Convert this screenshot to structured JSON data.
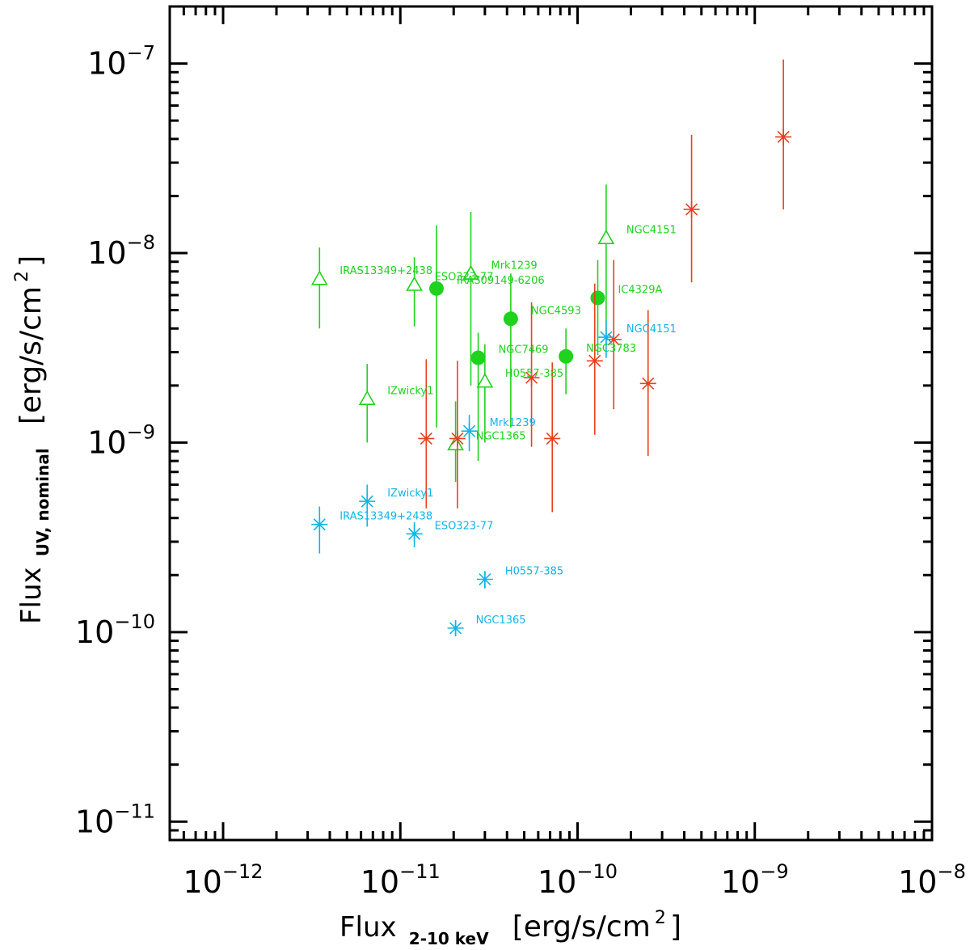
{
  "chart_data": {
    "type": "scatter",
    "xscale": "log",
    "yscale": "log",
    "xlim": [
      5e-13,
      1e-08
    ],
    "ylim": [
      8e-12,
      2e-07
    ],
    "xlabel": {
      "main": "Flux",
      "sub": "2-10 keV",
      "units": "[erg/s/cm",
      "sup": "2",
      "close": "]"
    },
    "ylabel": {
      "main": "Flux",
      "sub": "UV, nominal",
      "units": "[erg/s/cm",
      "sup": "2",
      "close": "]"
    },
    "xticks": [
      {
        "value": 1e-12,
        "base": "10",
        "exp": "−12"
      },
      {
        "value": 1e-11,
        "base": "10",
        "exp": "−11"
      },
      {
        "value": 1e-10,
        "base": "10",
        "exp": "−10"
      },
      {
        "value": 1e-09,
        "base": "10",
        "exp": "−9"
      },
      {
        "value": 1e-08,
        "base": "10",
        "exp": "−8"
      }
    ],
    "yticks": [
      {
        "value": 1e-11,
        "base": "10",
        "exp": "−11"
      },
      {
        "value": 1e-10,
        "base": "10",
        "exp": "−10"
      },
      {
        "value": 1e-09,
        "base": "10",
        "exp": "−9"
      },
      {
        "value": 1e-08,
        "base": "10",
        "exp": "−8"
      },
      {
        "value": 1e-07,
        "base": "10",
        "exp": "−7"
      }
    ],
    "series": [
      {
        "name": "green triangles",
        "color": "#1ed21e",
        "marker": "triangle-open",
        "points": [
          {
            "x": 3.5e-12,
            "y": 7.3e-09,
            "ylo": 4e-09,
            "yhi": 1.07e-08,
            "label": "IRAS13349+2438"
          },
          {
            "x": 1.2e-11,
            "y": 6.8e-09,
            "ylo": 4.1e-09,
            "yhi": 9.5e-09,
            "label": "ESO323-77"
          },
          {
            "x": 2.5e-11,
            "y": 7.8e-09,
            "ylo": 2e-09,
            "yhi": 1.65e-08,
            "label": "Mrk1239"
          },
          {
            "x": 1.45e-10,
            "y": 1.2e-08,
            "ylo": 3.5e-09,
            "yhi": 2.3e-08,
            "label": "NGC4151"
          },
          {
            "x": 6.5e-12,
            "y": 1.7e-09,
            "ylo": 1e-09,
            "yhi": 2.6e-09,
            "label": "IZwicky1"
          },
          {
            "x": 3e-11,
            "y": 2.1e-09,
            "ylo": 1e-09,
            "yhi": 3.3e-09,
            "label": "H0557-385"
          },
          {
            "x": 2.05e-11,
            "y": 9.8e-10,
            "ylo": 6.2e-10,
            "yhi": 1.65e-09,
            "label": "NGC1365"
          }
        ]
      },
      {
        "name": "green filled circles",
        "color": "#1ed21e",
        "marker": "circle-filled",
        "points": [
          {
            "x": 1.6e-11,
            "y": 6.5e-09,
            "ylo": 1.2e-09,
            "yhi": 1.4e-08,
            "label": "IRAS09149-6206"
          },
          {
            "x": 4.2e-11,
            "y": 4.5e-09,
            "ylo": 1.2e-09,
            "yhi": 7.8e-09,
            "label": "NGC4593"
          },
          {
            "x": 1.3e-10,
            "y": 5.8e-09,
            "ylo": 2.9e-09,
            "yhi": 9.2e-09,
            "label": "IC4329A"
          },
          {
            "x": 2.75e-11,
            "y": 2.8e-09,
            "ylo": 8e-10,
            "yhi": 3.8e-09,
            "label": "NGC7469"
          },
          {
            "x": 8.6e-11,
            "y": 2.85e-09,
            "ylo": 1.8e-09,
            "yhi": 4e-09,
            "label": "NGC3783"
          }
        ]
      },
      {
        "name": "red asterisks",
        "color": "#e8401e",
        "marker": "asterisk",
        "points": [
          {
            "x": 1.4e-11,
            "y": 1.05e-09,
            "ylo": 4.5e-10,
            "yhi": 2.75e-09
          },
          {
            "x": 2.1e-11,
            "y": 1.05e-09,
            "ylo": 4.5e-10,
            "yhi": 2.7e-09
          },
          {
            "x": 5.5e-11,
            "y": 2.2e-09,
            "ylo": 9.5e-10,
            "yhi": 5.5e-09
          },
          {
            "x": 7.2e-11,
            "y": 1.05e-09,
            "ylo": 4.3e-10,
            "yhi": 2.65e-09
          },
          {
            "x": 1.25e-10,
            "y": 2.7e-09,
            "ylo": 1.1e-09,
            "yhi": 6.9e-09
          },
          {
            "x": 1.6e-10,
            "y": 3.5e-09,
            "ylo": 1.5e-09,
            "yhi": 9.2e-09
          },
          {
            "x": 2.5e-10,
            "y": 2.05e-09,
            "ylo": 8.5e-10,
            "yhi": 5e-09
          },
          {
            "x": 4.4e-10,
            "y": 1.7e-08,
            "ylo": 7e-09,
            "yhi": 4.2e-08
          },
          {
            "x": 1.45e-09,
            "y": 4.1e-08,
            "ylo": 1.7e-08,
            "yhi": 1.05e-07
          }
        ]
      },
      {
        "name": "cyan asterisks",
        "color": "#12b4e6",
        "marker": "asterisk",
        "points": [
          {
            "x": 3.5e-12,
            "y": 3.7e-10,
            "ylo": 2.6e-10,
            "yhi": 4.6e-10,
            "label": "IRAS13349+2438"
          },
          {
            "x": 6.5e-12,
            "y": 4.9e-10,
            "ylo": 3.6e-10,
            "yhi": 6e-10,
            "label": "IZwicky1"
          },
          {
            "x": 1.2e-11,
            "y": 3.3e-10,
            "ylo": 2.8e-10,
            "yhi": 3.8e-10,
            "label": "ESO323-77"
          },
          {
            "x": 2.45e-11,
            "y": 1.15e-09,
            "ylo": 9e-10,
            "yhi": 1.4e-09,
            "label": "Mrk1239"
          },
          {
            "x": 1.45e-10,
            "y": 3.6e-09,
            "ylo": 2.8e-09,
            "yhi": 4.4e-09,
            "label": "NGC4151"
          },
          {
            "x": 3e-11,
            "y": 1.9e-10,
            "ylo": 1.7e-10,
            "yhi": 2.1e-10,
            "label": "H0557-385"
          },
          {
            "x": 2.05e-11,
            "y": 1.05e-10,
            "ylo": 9.5e-11,
            "yhi": 1.15e-10,
            "label": "NGC1365"
          }
        ]
      }
    ]
  }
}
